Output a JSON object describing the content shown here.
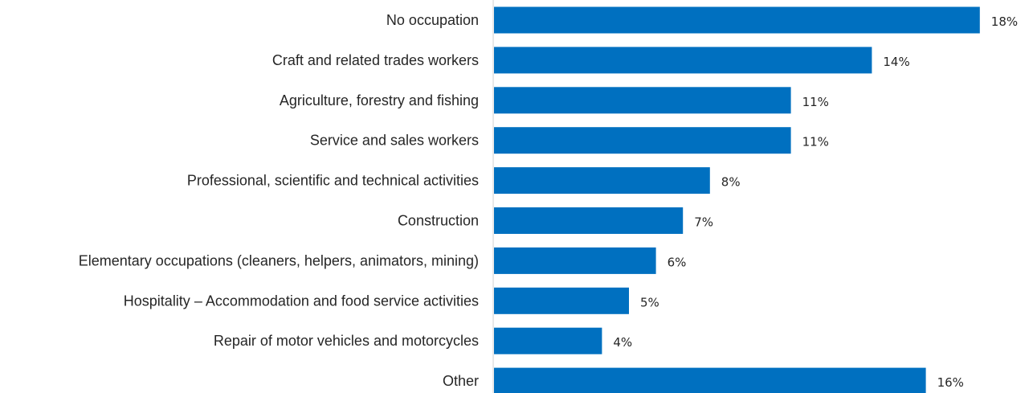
{
  "chart_data": {
    "type": "bar",
    "orientation": "horizontal",
    "categories": [
      "No occupation",
      "Craft and related trades workers",
      "Agriculture, forestry and fishing",
      "Service and sales workers",
      "Professional, scientific and technical activities",
      "Construction",
      "Elementary occupations (cleaners, helpers, animators, mining)",
      "Hospitality – Accommodation and food service activities",
      "Repair of motor vehicles and motorcycles",
      "Other"
    ],
    "values": [
      18,
      14,
      11,
      11,
      8,
      7,
      6,
      5,
      4,
      16
    ],
    "value_labels": [
      "18%",
      "14%",
      "11%",
      "11%",
      "8%",
      "7%",
      "6%",
      "5%",
      "4%",
      "16%"
    ],
    "unit": "%",
    "xlim": [
      0,
      18
    ],
    "grid": false,
    "legend": "none",
    "bar_color": "#0070C0"
  }
}
